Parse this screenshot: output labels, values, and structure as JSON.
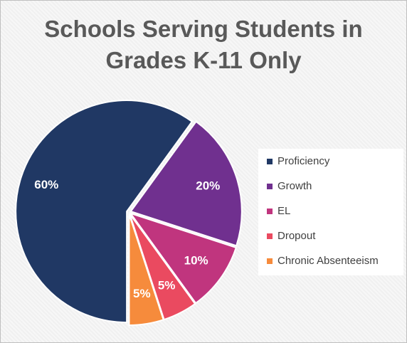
{
  "chart_data": {
    "type": "pie",
    "title": "Schools Serving Students in Grades K-11 Only",
    "categories": [
      "Proficiency",
      "Growth",
      "EL",
      "Dropout",
      "Chronic Absenteeism"
    ],
    "values": [
      60,
      20,
      10,
      5,
      5
    ],
    "value_labels": [
      "60%",
      "20%",
      "10%",
      "5%",
      "5%"
    ],
    "colors": [
      "#203864",
      "#70308f",
      "#c0357e",
      "#ea4a60",
      "#f68b3c"
    ],
    "legend": "right"
  }
}
